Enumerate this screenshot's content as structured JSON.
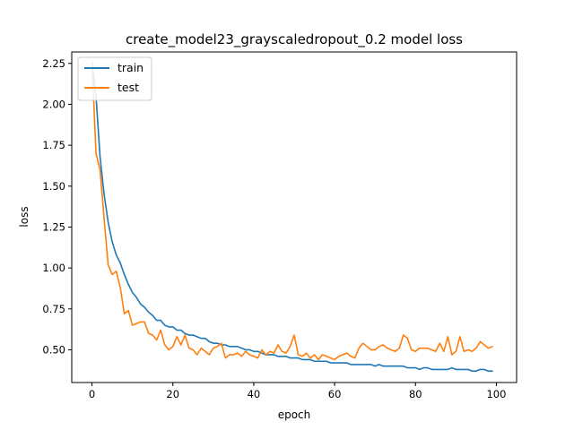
{
  "chart_data": {
    "type": "line",
    "title": "create_model23_grayscaledropout_0.2 model loss",
    "xlabel": "epoch",
    "ylabel": "loss",
    "xlim": [
      -5,
      105
    ],
    "ylim": [
      0.3,
      2.32
    ],
    "xticks": [
      0,
      20,
      40,
      60,
      80,
      100
    ],
    "xtick_labels": [
      "0",
      "20",
      "40",
      "60",
      "80",
      "100"
    ],
    "yticks": [
      0.5,
      0.75,
      1.0,
      1.25,
      1.5,
      1.75,
      2.0,
      2.25
    ],
    "ytick_labels": [
      "0.50",
      "0.75",
      "1.00",
      "1.25",
      "1.50",
      "1.75",
      "2.00",
      "2.25"
    ],
    "grid": false,
    "legend": {
      "position": "top-left"
    },
    "series": [
      {
        "name": "train",
        "color": "#1f77b4",
        "x": [
          0,
          1,
          2,
          3,
          4,
          5,
          6,
          7,
          8,
          9,
          10,
          11,
          12,
          13,
          14,
          15,
          16,
          17,
          18,
          19,
          20,
          21,
          22,
          23,
          24,
          25,
          26,
          27,
          28,
          29,
          30,
          31,
          32,
          33,
          34,
          35,
          36,
          37,
          38,
          39,
          40,
          41,
          42,
          43,
          44,
          45,
          46,
          47,
          48,
          49,
          50,
          51,
          52,
          53,
          54,
          55,
          56,
          57,
          58,
          59,
          60,
          61,
          62,
          63,
          64,
          65,
          66,
          67,
          68,
          69,
          70,
          71,
          72,
          73,
          74,
          75,
          76,
          77,
          78,
          79,
          80,
          81,
          82,
          83,
          84,
          85,
          86,
          87,
          88,
          89,
          90,
          91,
          92,
          93,
          94,
          95,
          96,
          97,
          98,
          99
        ],
        "y": [
          2.25,
          2.05,
          1.68,
          1.45,
          1.28,
          1.16,
          1.08,
          1.03,
          0.96,
          0.9,
          0.85,
          0.82,
          0.78,
          0.76,
          0.73,
          0.71,
          0.68,
          0.68,
          0.65,
          0.64,
          0.64,
          0.62,
          0.62,
          0.6,
          0.59,
          0.59,
          0.58,
          0.57,
          0.57,
          0.55,
          0.54,
          0.54,
          0.53,
          0.53,
          0.52,
          0.52,
          0.52,
          0.51,
          0.5,
          0.5,
          0.49,
          0.49,
          0.48,
          0.47,
          0.47,
          0.47,
          0.46,
          0.46,
          0.46,
          0.45,
          0.45,
          0.45,
          0.44,
          0.44,
          0.44,
          0.43,
          0.43,
          0.43,
          0.43,
          0.42,
          0.42,
          0.42,
          0.42,
          0.42,
          0.41,
          0.41,
          0.41,
          0.41,
          0.41,
          0.41,
          0.4,
          0.41,
          0.4,
          0.4,
          0.4,
          0.4,
          0.4,
          0.4,
          0.39,
          0.39,
          0.39,
          0.38,
          0.39,
          0.39,
          0.38,
          0.38,
          0.38,
          0.38,
          0.38,
          0.39,
          0.38,
          0.38,
          0.38,
          0.38,
          0.37,
          0.37,
          0.38,
          0.38,
          0.37,
          0.37
        ]
      },
      {
        "name": "test",
        "color": "#ff7f0e",
        "x": [
          0,
          1,
          2,
          3,
          4,
          5,
          6,
          7,
          8,
          9,
          10,
          11,
          12,
          13,
          14,
          15,
          16,
          17,
          18,
          19,
          20,
          21,
          22,
          23,
          24,
          25,
          26,
          27,
          28,
          29,
          30,
          31,
          32,
          33,
          34,
          35,
          36,
          37,
          38,
          39,
          40,
          41,
          42,
          43,
          44,
          45,
          46,
          47,
          48,
          49,
          50,
          51,
          52,
          53,
          54,
          55,
          56,
          57,
          58,
          59,
          60,
          61,
          62,
          63,
          64,
          65,
          66,
          67,
          68,
          69,
          70,
          71,
          72,
          73,
          74,
          75,
          76,
          77,
          78,
          79,
          80,
          81,
          82,
          83,
          84,
          85,
          86,
          87,
          88,
          89,
          90,
          91,
          92,
          93,
          94,
          95,
          96,
          97,
          98,
          99
        ],
        "y": [
          2.26,
          1.7,
          1.6,
          1.3,
          1.02,
          0.96,
          0.98,
          0.88,
          0.72,
          0.74,
          0.65,
          0.66,
          0.67,
          0.67,
          0.6,
          0.59,
          0.56,
          0.62,
          0.53,
          0.5,
          0.52,
          0.58,
          0.53,
          0.59,
          0.51,
          0.5,
          0.47,
          0.51,
          0.49,
          0.47,
          0.51,
          0.52,
          0.54,
          0.45,
          0.47,
          0.47,
          0.48,
          0.46,
          0.49,
          0.47,
          0.46,
          0.45,
          0.5,
          0.47,
          0.49,
          0.48,
          0.53,
          0.49,
          0.48,
          0.52,
          0.59,
          0.47,
          0.46,
          0.48,
          0.45,
          0.47,
          0.44,
          0.47,
          0.46,
          0.45,
          0.44,
          0.46,
          0.47,
          0.48,
          0.46,
          0.45,
          0.51,
          0.54,
          0.52,
          0.5,
          0.5,
          0.52,
          0.53,
          0.51,
          0.5,
          0.49,
          0.51,
          0.59,
          0.57,
          0.5,
          0.49,
          0.51,
          0.51,
          0.51,
          0.5,
          0.49,
          0.54,
          0.49,
          0.58,
          0.47,
          0.49,
          0.58,
          0.49,
          0.5,
          0.49,
          0.51,
          0.55,
          0.53,
          0.51,
          0.52
        ]
      }
    ]
  }
}
